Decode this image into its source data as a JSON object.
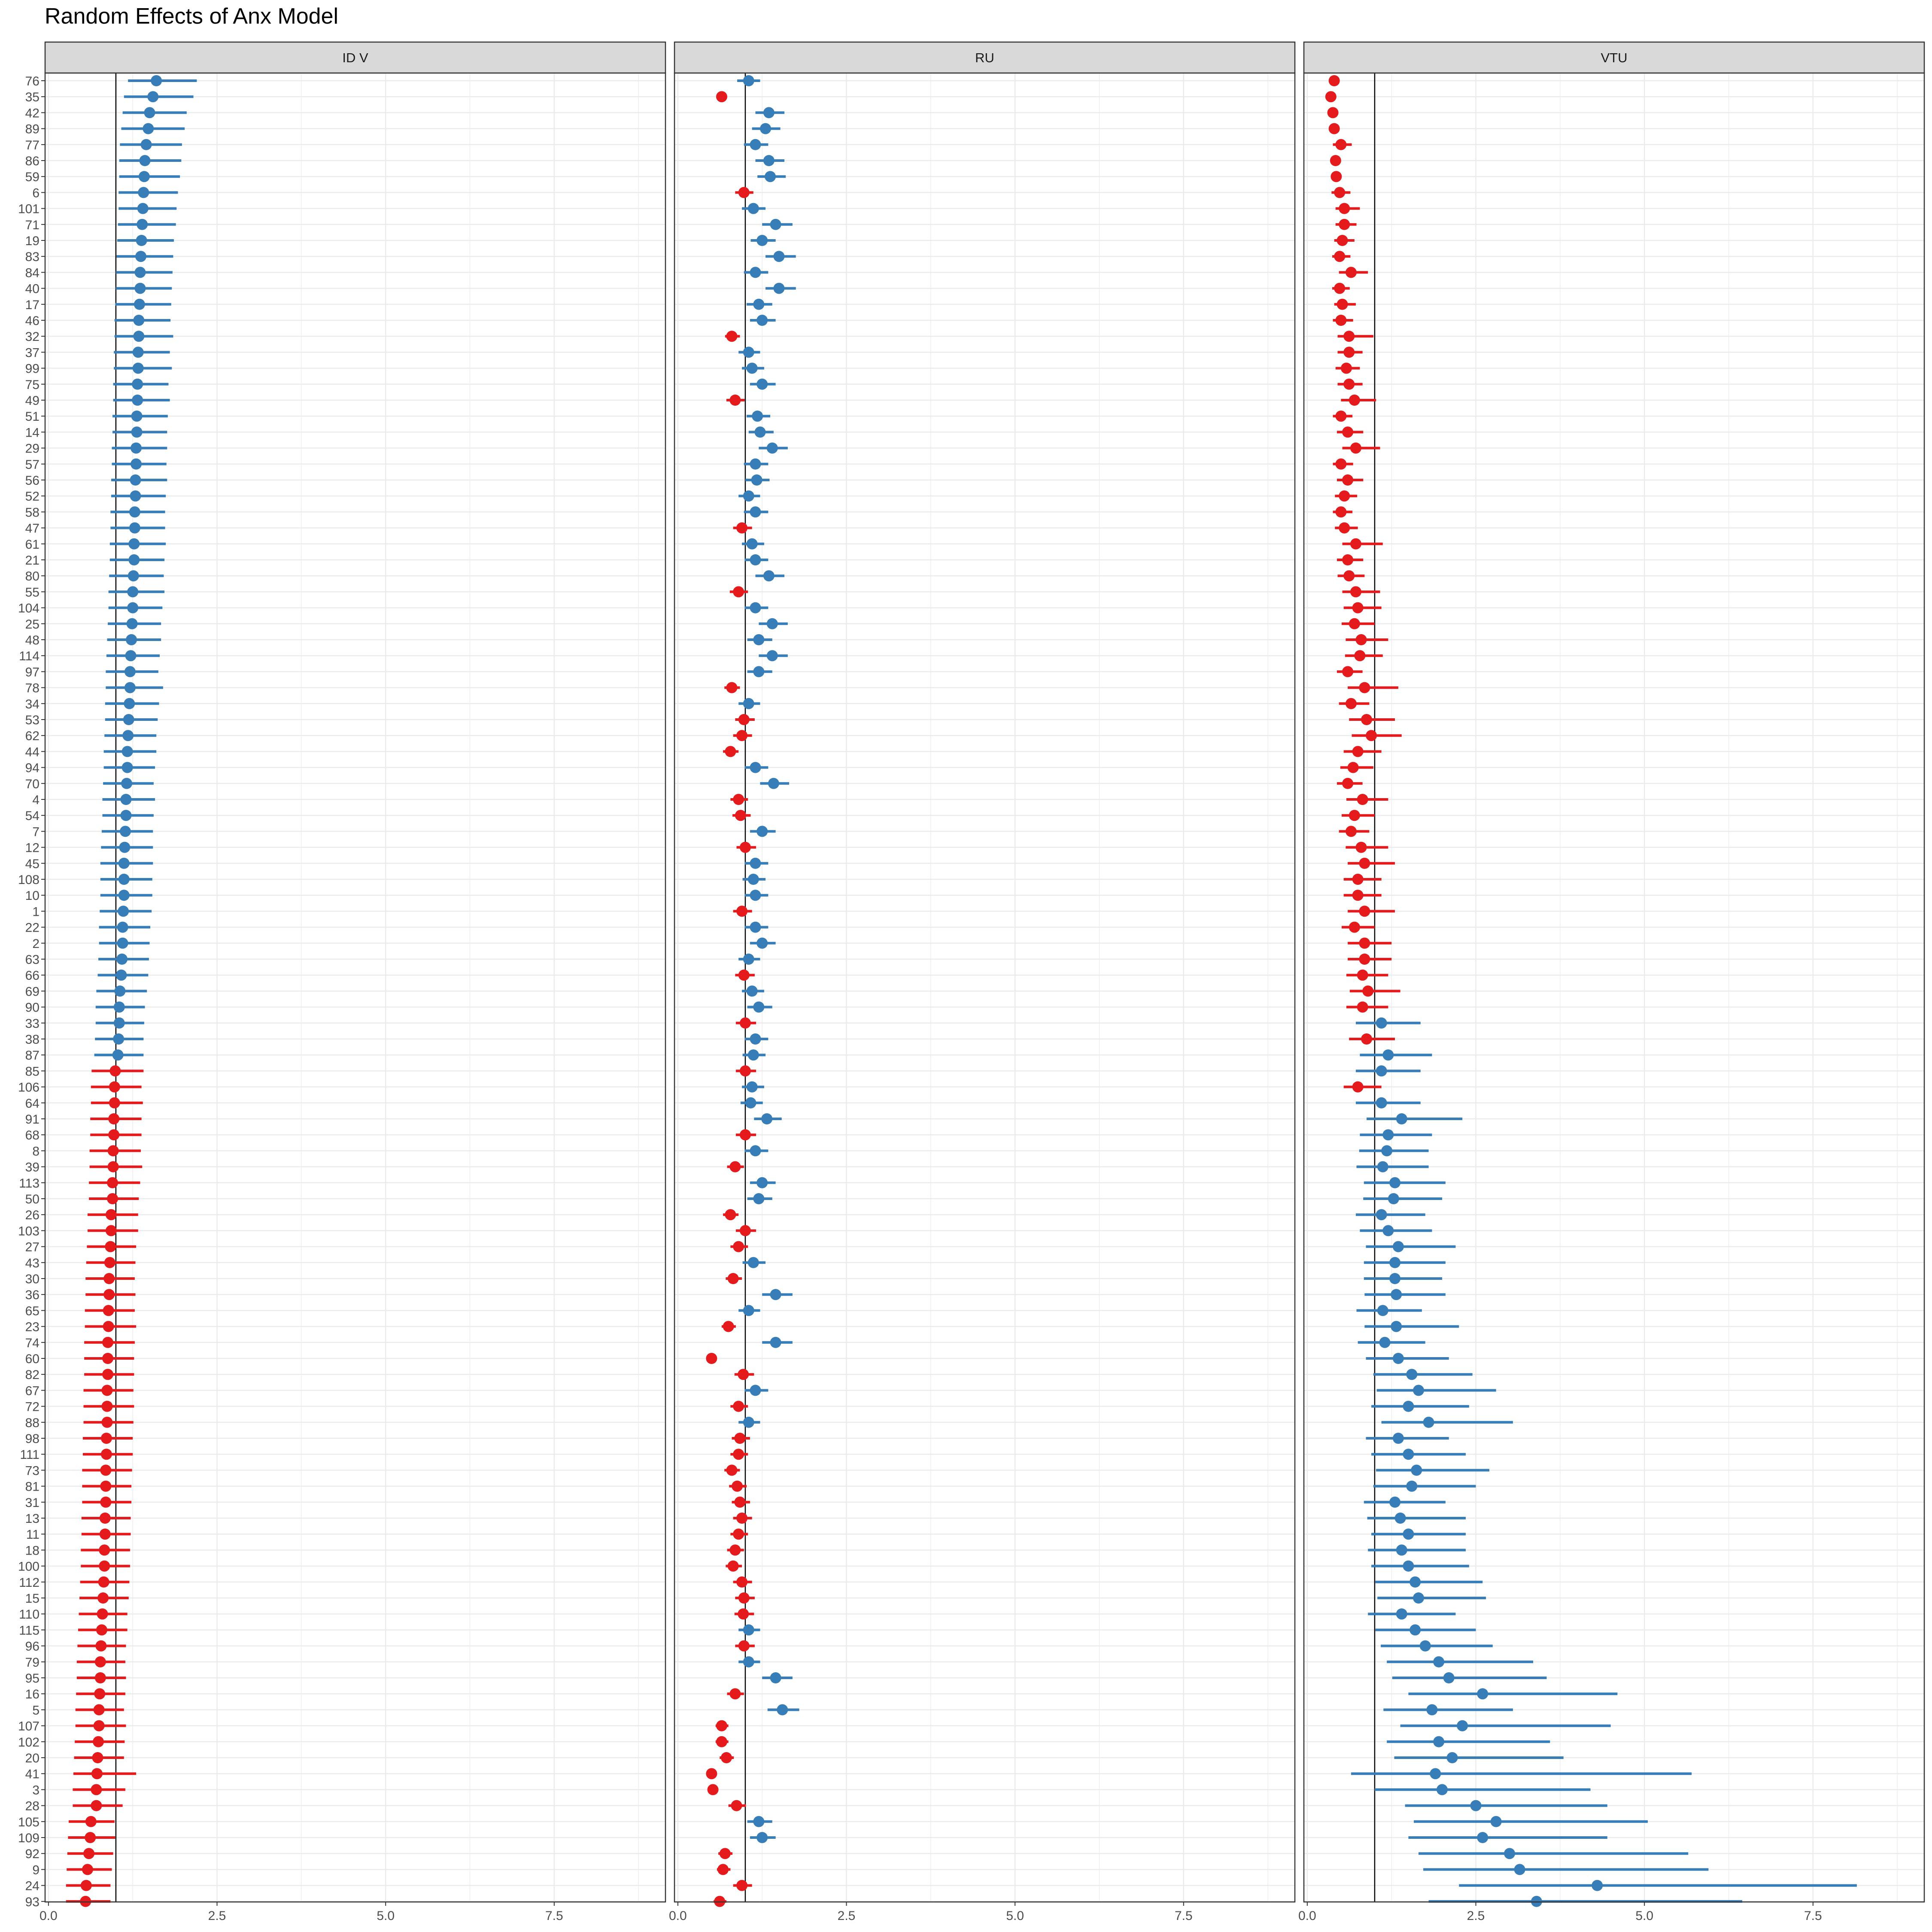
{
  "title": "Random Effects of Anx Model",
  "colors": {
    "above": "#377eb8",
    "below": "#e41a1c",
    "strip_fill": "#d9d9d9",
    "grid": "#ebebeb",
    "ref_line": "#000000",
    "axis_text": "#4d4d4d"
  },
  "chart_data": {
    "type": "scatter",
    "title": "Random Effects of Anx Model",
    "xlabel": "",
    "ylabel": "",
    "xlim": [
      -0.05,
      9.15
    ],
    "x_ticks": [
      0,
      2.5,
      5,
      7.5
    ],
    "x_tick_labels": [
      "0.0",
      "2.5",
      "5.0",
      "7.5"
    ],
    "reference_x": 1,
    "grid": true,
    "legend": "none",
    "color_rule": "blue when estimate > 1, red when estimate < 1",
    "categories": [
      "76",
      "35",
      "42",
      "89",
      "77",
      "86",
      "59",
      "6",
      "101",
      "71",
      "19",
      "83",
      "84",
      "40",
      "17",
      "46",
      "32",
      "37",
      "99",
      "75",
      "49",
      "51",
      "14",
      "29",
      "57",
      "56",
      "52",
      "58",
      "47",
      "61",
      "21",
      "80",
      "55",
      "104",
      "25",
      "48",
      "114",
      "97",
      "78",
      "34",
      "53",
      "62",
      "44",
      "94",
      "70",
      "4",
      "54",
      "7",
      "12",
      "45",
      "108",
      "10",
      "1",
      "22",
      "2",
      "63",
      "66",
      "69",
      "90",
      "33",
      "38",
      "87",
      "85",
      "106",
      "64",
      "91",
      "68",
      "8",
      "39",
      "113",
      "50",
      "26",
      "103",
      "27",
      "43",
      "30",
      "36",
      "65",
      "23",
      "74",
      "60",
      "82",
      "67",
      "72",
      "88",
      "98",
      "111",
      "73",
      "81",
      "31",
      "13",
      "11",
      "18",
      "100",
      "112",
      "15",
      "110",
      "115",
      "96",
      "79",
      "95",
      "16",
      "5",
      "107",
      "102",
      "20",
      "41",
      "3",
      "28",
      "105",
      "109",
      "92",
      "9",
      "24",
      "93"
    ],
    "panels": [
      {
        "name": "ID V",
        "estimate": [
          1.6,
          1.55,
          1.5,
          1.48,
          1.45,
          1.43,
          1.42,
          1.41,
          1.4,
          1.39,
          1.38,
          1.37,
          1.36,
          1.36,
          1.35,
          1.34,
          1.34,
          1.33,
          1.33,
          1.32,
          1.32,
          1.31,
          1.31,
          1.3,
          1.3,
          1.29,
          1.29,
          1.28,
          1.28,
          1.27,
          1.27,
          1.26,
          1.25,
          1.25,
          1.24,
          1.23,
          1.22,
          1.21,
          1.21,
          1.2,
          1.19,
          1.18,
          1.17,
          1.17,
          1.16,
          1.15,
          1.15,
          1.14,
          1.13,
          1.12,
          1.12,
          1.12,
          1.11,
          1.1,
          1.1,
          1.09,
          1.08,
          1.06,
          1.05,
          1.05,
          1.04,
          1.03,
          0.99,
          0.98,
          0.98,
          0.97,
          0.97,
          0.96,
          0.96,
          0.95,
          0.95,
          0.93,
          0.93,
          0.92,
          0.91,
          0.9,
          0.9,
          0.89,
          0.89,
          0.88,
          0.88,
          0.88,
          0.87,
          0.87,
          0.87,
          0.86,
          0.86,
          0.85,
          0.85,
          0.85,
          0.84,
          0.84,
          0.83,
          0.83,
          0.82,
          0.81,
          0.8,
          0.79,
          0.78,
          0.77,
          0.77,
          0.76,
          0.75,
          0.75,
          0.74,
          0.73,
          0.72,
          0.71,
          0.71,
          0.63,
          0.62,
          0.6,
          0.58,
          0.56,
          0.55
        ],
        "lower": [
          1.18,
          1.12,
          1.1,
          1.08,
          1.06,
          1.05,
          1.05,
          1.04,
          1.04,
          1.03,
          1.02,
          1.01,
          1.0,
          1.0,
          0.99,
          0.98,
          0.98,
          0.97,
          0.97,
          0.96,
          0.96,
          0.95,
          0.95,
          0.94,
          0.94,
          0.93,
          0.93,
          0.92,
          0.92,
          0.91,
          0.91,
          0.9,
          0.89,
          0.89,
          0.88,
          0.87,
          0.86,
          0.85,
          0.85,
          0.84,
          0.84,
          0.83,
          0.82,
          0.82,
          0.81,
          0.8,
          0.8,
          0.79,
          0.78,
          0.77,
          0.77,
          0.77,
          0.76,
          0.75,
          0.75,
          0.74,
          0.73,
          0.71,
          0.7,
          0.7,
          0.69,
          0.68,
          0.64,
          0.63,
          0.63,
          0.62,
          0.62,
          0.61,
          0.61,
          0.6,
          0.6,
          0.58,
          0.58,
          0.57,
          0.56,
          0.55,
          0.55,
          0.54,
          0.54,
          0.53,
          0.53,
          0.53,
          0.52,
          0.52,
          0.52,
          0.51,
          0.51,
          0.5,
          0.5,
          0.5,
          0.49,
          0.49,
          0.48,
          0.48,
          0.47,
          0.46,
          0.45,
          0.44,
          0.43,
          0.42,
          0.42,
          0.41,
          0.4,
          0.4,
          0.39,
          0.38,
          0.37,
          0.36,
          0.36,
          0.3,
          0.29,
          0.28,
          0.27,
          0.26,
          0.26
        ],
        "upper": [
          2.2,
          2.15,
          2.05,
          2.02,
          1.98,
          1.97,
          1.95,
          1.92,
          1.9,
          1.89,
          1.86,
          1.85,
          1.84,
          1.83,
          1.82,
          1.81,
          1.85,
          1.8,
          1.83,
          1.78,
          1.8,
          1.77,
          1.76,
          1.76,
          1.75,
          1.76,
          1.74,
          1.73,
          1.73,
          1.74,
          1.72,
          1.71,
          1.72,
          1.69,
          1.67,
          1.67,
          1.65,
          1.63,
          1.7,
          1.64,
          1.62,
          1.6,
          1.6,
          1.58,
          1.56,
          1.58,
          1.56,
          1.55,
          1.55,
          1.55,
          1.54,
          1.54,
          1.53,
          1.51,
          1.5,
          1.49,
          1.48,
          1.46,
          1.43,
          1.42,
          1.41,
          1.41,
          1.41,
          1.38,
          1.4,
          1.38,
          1.38,
          1.37,
          1.39,
          1.36,
          1.34,
          1.33,
          1.33,
          1.3,
          1.29,
          1.28,
          1.29,
          1.28,
          1.3,
          1.28,
          1.27,
          1.27,
          1.26,
          1.27,
          1.26,
          1.25,
          1.25,
          1.24,
          1.23,
          1.23,
          1.22,
          1.22,
          1.21,
          1.21,
          1.2,
          1.19,
          1.17,
          1.17,
          1.15,
          1.14,
          1.15,
          1.14,
          1.12,
          1.15,
          1.13,
          1.12,
          1.3,
          1.14,
          1.1,
          0.98,
          0.99,
          0.96,
          0.94,
          0.92,
          0.92
        ]
      },
      {
        "name": "RU",
        "estimate": [
          1.05,
          0.65,
          1.35,
          1.3,
          1.15,
          1.35,
          1.37,
          0.98,
          1.12,
          1.45,
          1.25,
          1.5,
          1.15,
          1.5,
          1.2,
          1.25,
          0.8,
          1.05,
          1.1,
          1.25,
          0.85,
          1.18,
          1.22,
          1.4,
          1.15,
          1.17,
          1.05,
          1.15,
          0.95,
          1.1,
          1.15,
          1.35,
          0.9,
          1.15,
          1.4,
          1.2,
          1.4,
          1.2,
          0.8,
          1.05,
          0.98,
          0.95,
          0.78,
          1.15,
          1.42,
          0.9,
          0.93,
          1.25,
          1.0,
          1.15,
          1.12,
          1.15,
          0.95,
          1.15,
          1.25,
          1.05,
          0.98,
          1.1,
          1.2,
          1.0,
          1.15,
          1.12,
          1.0,
          1.1,
          1.08,
          1.32,
          1.0,
          1.15,
          0.85,
          1.25,
          1.2,
          0.78,
          1.0,
          0.9,
          1.12,
          0.82,
          1.45,
          1.05,
          0.75,
          1.45,
          0.5,
          0.97,
          1.15,
          0.9,
          1.05,
          0.92,
          0.9,
          0.8,
          0.88,
          0.92,
          0.95,
          0.9,
          0.85,
          0.82,
          0.95,
          0.98,
          0.97,
          1.05,
          0.98,
          1.05,
          1.45,
          0.85,
          1.55,
          0.65,
          0.65,
          0.72,
          0.5,
          0.52,
          0.87,
          1.2,
          1.25,
          0.7,
          0.67,
          0.95,
          0.62
        ],
        "lower": [
          0.88,
          0.58,
          1.15,
          1.1,
          0.98,
          1.15,
          1.18,
          0.85,
          0.95,
          1.25,
          1.08,
          1.3,
          0.98,
          1.3,
          1.02,
          1.07,
          0.7,
          0.9,
          0.95,
          1.07,
          0.72,
          1.02,
          1.05,
          1.2,
          0.98,
          1.0,
          0.9,
          0.98,
          0.82,
          0.95,
          0.99,
          1.15,
          0.77,
          0.99,
          1.2,
          1.03,
          1.2,
          1.03,
          0.69,
          0.9,
          0.85,
          0.82,
          0.67,
          0.99,
          1.22,
          0.78,
          0.81,
          1.07,
          0.87,
          0.99,
          0.96,
          0.99,
          0.82,
          0.99,
          1.07,
          0.9,
          0.85,
          0.95,
          1.03,
          0.86,
          0.99,
          0.96,
          0.86,
          0.95,
          0.93,
          1.13,
          0.86,
          0.99,
          0.73,
          1.07,
          1.03,
          0.67,
          0.86,
          0.78,
          0.96,
          0.71,
          1.25,
          0.9,
          0.65,
          1.25,
          0.43,
          0.84,
          0.99,
          0.78,
          0.9,
          0.8,
          0.78,
          0.69,
          0.76,
          0.8,
          0.82,
          0.78,
          0.73,
          0.71,
          0.82,
          0.85,
          0.84,
          0.9,
          0.85,
          0.9,
          1.25,
          0.73,
          1.33,
          0.56,
          0.56,
          0.62,
          0.43,
          0.45,
          0.75,
          1.03,
          1.07,
          0.6,
          0.58,
          0.82,
          0.53
        ],
        "upper": [
          1.22,
          0.72,
          1.58,
          1.52,
          1.34,
          1.58,
          1.6,
          1.12,
          1.3,
          1.7,
          1.45,
          1.75,
          1.34,
          1.75,
          1.4,
          1.45,
          0.92,
          1.22,
          1.28,
          1.45,
          0.99,
          1.37,
          1.42,
          1.63,
          1.34,
          1.36,
          1.22,
          1.34,
          1.1,
          1.28,
          1.34,
          1.58,
          1.04,
          1.34,
          1.63,
          1.4,
          1.63,
          1.4,
          0.92,
          1.22,
          1.14,
          1.1,
          0.9,
          1.34,
          1.65,
          1.04,
          1.08,
          1.45,
          1.16,
          1.34,
          1.3,
          1.34,
          1.1,
          1.34,
          1.45,
          1.22,
          1.14,
          1.28,
          1.4,
          1.16,
          1.34,
          1.3,
          1.16,
          1.28,
          1.26,
          1.54,
          1.16,
          1.34,
          0.98,
          1.45,
          1.4,
          0.9,
          1.16,
          1.04,
          1.3,
          0.95,
          1.7,
          1.22,
          0.86,
          1.7,
          0.57,
          1.13,
          1.34,
          1.04,
          1.22,
          1.07,
          1.04,
          0.92,
          1.02,
          1.07,
          1.1,
          1.04,
          0.98,
          0.95,
          1.1,
          1.14,
          1.13,
          1.22,
          1.14,
          1.22,
          1.7,
          0.98,
          1.8,
          0.75,
          0.75,
          0.83,
          0.57,
          0.6,
          1.01,
          1.4,
          1.45,
          0.81,
          0.78,
          1.1,
          0.72
        ]
      },
      {
        "name": "VTU",
        "estimate": [
          0.4,
          0.35,
          0.38,
          0.4,
          0.5,
          0.42,
          0.43,
          0.48,
          0.55,
          0.55,
          0.52,
          0.48,
          0.65,
          0.48,
          0.52,
          0.5,
          0.62,
          0.62,
          0.58,
          0.62,
          0.7,
          0.5,
          0.6,
          0.72,
          0.5,
          0.6,
          0.55,
          0.5,
          0.55,
          0.72,
          0.6,
          0.62,
          0.72,
          0.75,
          0.7,
          0.8,
          0.78,
          0.6,
          0.85,
          0.65,
          0.88,
          0.95,
          0.75,
          0.68,
          0.6,
          0.82,
          0.7,
          0.65,
          0.8,
          0.85,
          0.75,
          0.75,
          0.85,
          0.7,
          0.85,
          0.85,
          0.82,
          0.9,
          0.82,
          1.1,
          0.88,
          1.2,
          1.1,
          0.75,
          1.1,
          1.4,
          1.2,
          1.18,
          1.12,
          1.3,
          1.28,
          1.1,
          1.2,
          1.35,
          1.3,
          1.3,
          1.32,
          1.12,
          1.32,
          1.15,
          1.35,
          1.55,
          1.65,
          1.5,
          1.8,
          1.35,
          1.5,
          1.62,
          1.55,
          1.3,
          1.38,
          1.5,
          1.4,
          1.5,
          1.6,
          1.65,
          1.4,
          1.6,
          1.75,
          1.95,
          2.1,
          2.6,
          1.85,
          2.3,
          1.95,
          2.15,
          1.9,
          2.0,
          2.5,
          2.8,
          2.6,
          3.0,
          3.15,
          4.3,
          3.4
        ],
        "lower": [
          0.33,
          0.3,
          0.32,
          0.34,
          0.38,
          0.36,
          0.37,
          0.36,
          0.42,
          0.42,
          0.4,
          0.37,
          0.47,
          0.37,
          0.4,
          0.38,
          0.45,
          0.45,
          0.42,
          0.45,
          0.5,
          0.38,
          0.44,
          0.52,
          0.38,
          0.44,
          0.41,
          0.38,
          0.41,
          0.52,
          0.44,
          0.45,
          0.52,
          0.54,
          0.51,
          0.57,
          0.56,
          0.44,
          0.6,
          0.47,
          0.62,
          0.66,
          0.54,
          0.49,
          0.44,
          0.58,
          0.51,
          0.47,
          0.57,
          0.6,
          0.54,
          0.54,
          0.6,
          0.51,
          0.6,
          0.6,
          0.58,
          0.63,
          0.58,
          0.72,
          0.62,
          0.78,
          0.72,
          0.54,
          0.72,
          0.88,
          0.78,
          0.77,
          0.73,
          0.84,
          0.83,
          0.72,
          0.78,
          0.87,
          0.84,
          0.84,
          0.85,
          0.73,
          0.85,
          0.75,
          0.87,
          0.98,
          1.03,
          0.95,
          1.1,
          0.87,
          0.95,
          1.02,
          0.98,
          0.84,
          0.89,
          0.95,
          0.9,
          0.95,
          1.01,
          1.04,
          0.9,
          1.01,
          1.09,
          1.18,
          1.26,
          1.5,
          1.13,
          1.38,
          1.18,
          1.29,
          0.65,
          1.0,
          1.45,
          1.58,
          1.5,
          1.65,
          1.72,
          2.25,
          1.8
        ],
        "upper": [
          0.48,
          0.42,
          0.45,
          0.47,
          0.66,
          0.5,
          0.51,
          0.64,
          0.78,
          0.73,
          0.7,
          0.64,
          0.9,
          0.63,
          0.72,
          0.68,
          0.98,
          0.82,
          0.78,
          0.82,
          1.02,
          0.67,
          0.83,
          1.08,
          0.68,
          0.83,
          0.74,
          0.67,
          0.75,
          1.12,
          0.83,
          0.85,
          1.08,
          1.1,
          1.0,
          1.2,
          1.12,
          0.82,
          1.35,
          0.92,
          1.3,
          1.4,
          1.1,
          0.98,
          0.82,
          1.2,
          1.0,
          0.92,
          1.2,
          1.3,
          1.1,
          1.1,
          1.3,
          1.0,
          1.25,
          1.25,
          1.2,
          1.38,
          1.2,
          1.68,
          1.3,
          1.85,
          1.68,
          1.1,
          1.68,
          2.3,
          1.85,
          1.8,
          1.8,
          2.05,
          2.0,
          1.75,
          1.85,
          2.2,
          2.05,
          2.0,
          2.05,
          1.7,
          2.25,
          1.75,
          2.1,
          2.45,
          2.8,
          2.4,
          3.05,
          2.1,
          2.35,
          2.7,
          2.5,
          2.05,
          2.35,
          2.35,
          2.35,
          2.4,
          2.6,
          2.65,
          2.2,
          2.5,
          2.75,
          3.35,
          3.55,
          4.6,
          3.05,
          4.5,
          3.6,
          3.8,
          5.7,
          4.2,
          4.45,
          5.05,
          4.45,
          5.65,
          5.95,
          8.15,
          6.45
        ]
      }
    ]
  }
}
